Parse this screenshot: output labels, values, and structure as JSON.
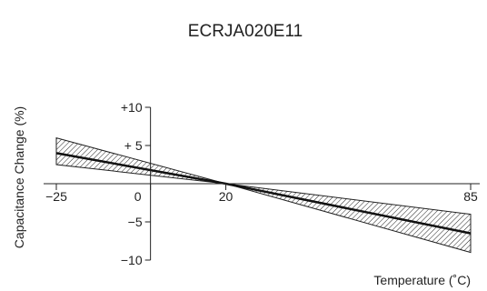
{
  "chart_data": {
    "type": "line",
    "title": "ECRJA020E11",
    "xlabel": "Temperature (˚C)",
    "ylabel": "Capacitance Change (%)",
    "xlim": [
      -25,
      85
    ],
    "ylim": [
      -10,
      10
    ],
    "x_ticks": [
      {
        "value": -25,
        "label": "−25"
      },
      {
        "value": 0,
        "label": "0"
      },
      {
        "value": 20,
        "label": "20"
      },
      {
        "value": 85,
        "label": "85"
      }
    ],
    "y_ticks": [
      {
        "value": 10,
        "label": "+10"
      },
      {
        "value": 5,
        "label": "+ 5"
      },
      {
        "value": -5,
        "label": "−5"
      },
      {
        "value": -10,
        "label": "−10"
      }
    ],
    "center_line": {
      "x": [
        -25,
        20,
        85
      ],
      "y": [
        4,
        0,
        -6.5
      ]
    },
    "tolerance_band": {
      "x": [
        -25,
        20,
        85
      ],
      "upper": [
        6,
        0,
        -4
      ],
      "lower": [
        2.5,
        0,
        -9
      ]
    },
    "grid": false
  }
}
